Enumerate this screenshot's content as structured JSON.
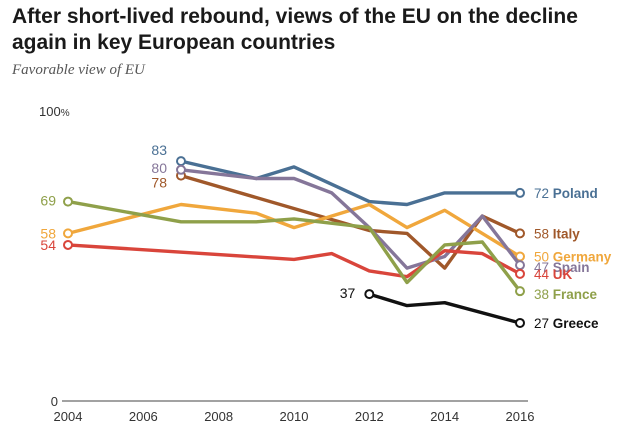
{
  "chart_data": {
    "type": "line",
    "title": "After short-lived rebound, views of the EU on the decline again in key European countries",
    "subtitle": "Favorable view of EU",
    "xlabel": "",
    "ylabel": "",
    "xlim": [
      2004,
      2016
    ],
    "ylim": [
      0,
      100
    ],
    "x_ticks": [
      2004,
      2006,
      2008,
      2010,
      2012,
      2014,
      2016
    ],
    "y_tick_labels": [
      {
        "value": 100,
        "label": "100",
        "suffix": "%"
      },
      {
        "value": 0,
        "label": "0",
        "suffix": ""
      }
    ],
    "grid": false,
    "legend": "end-of-line labels",
    "series": [
      {
        "name": "Poland",
        "color": "#4a7094",
        "label_color": "#4a7094",
        "x": [
          2007,
          2009,
          2010,
          2012,
          2013,
          2014,
          2015,
          2016
        ],
        "y": [
          83,
          77,
          81,
          69,
          68,
          72,
          72,
          72
        ],
        "start_label": "83",
        "end_label": "72",
        "bold_name": true
      },
      {
        "name": "Italy",
        "color": "#a0582a",
        "label_color": "#a0582a",
        "x": [
          2007,
          2012,
          2013,
          2014,
          2015,
          2016
        ],
        "y": [
          78,
          59,
          58,
          46,
          64,
          58
        ],
        "start_label": "78",
        "end_label": "58",
        "bold_name": true
      },
      {
        "name": "Germany",
        "color": "#f0a73c",
        "label_color": "#f0a73c",
        "x": [
          2004,
          2007,
          2009,
          2010,
          2012,
          2013,
          2014,
          2015,
          2016
        ],
        "y": [
          58,
          68,
          65,
          60,
          68,
          60,
          66,
          58,
          50
        ],
        "start_label": "58",
        "end_label": "50",
        "bold_name": true
      },
      {
        "name": "Spain",
        "color": "#857699",
        "label_color": "#857699",
        "x": [
          2007,
          2009,
          2010,
          2011,
          2012,
          2013,
          2014,
          2015,
          2016
        ],
        "y": [
          80,
          77,
          77,
          72,
          60,
          46,
          50,
          64,
          47
        ],
        "start_label": "80",
        "end_label": "47",
        "bold_name": true
      },
      {
        "name": "UK",
        "color": "#d9453b",
        "label_color": "#d9453b",
        "x": [
          2004,
          2010,
          2011,
          2012,
          2013,
          2014,
          2015,
          2016
        ],
        "y": [
          54,
          49,
          51,
          45,
          43,
          52,
          51,
          44
        ],
        "start_label": "54",
        "end_label": "44",
        "bold_name": true
      },
      {
        "name": "France",
        "color": "#8fa04a",
        "label_color": "#8fa04a",
        "x": [
          2004,
          2007,
          2009,
          2010,
          2012,
          2013,
          2014,
          2015,
          2016
        ],
        "y": [
          69,
          62,
          62,
          63,
          60,
          41,
          54,
          55,
          38
        ],
        "start_label": "69",
        "end_label": "38",
        "bold_name": true
      },
      {
        "name": "Greece",
        "color": "#111111",
        "label_color": "#111111",
        "x": [
          2012,
          2013,
          2014,
          2016
        ],
        "y": [
          37,
          33,
          34,
          27
        ],
        "start_label": "37",
        "end_label": "27",
        "bold_name": true
      }
    ]
  }
}
